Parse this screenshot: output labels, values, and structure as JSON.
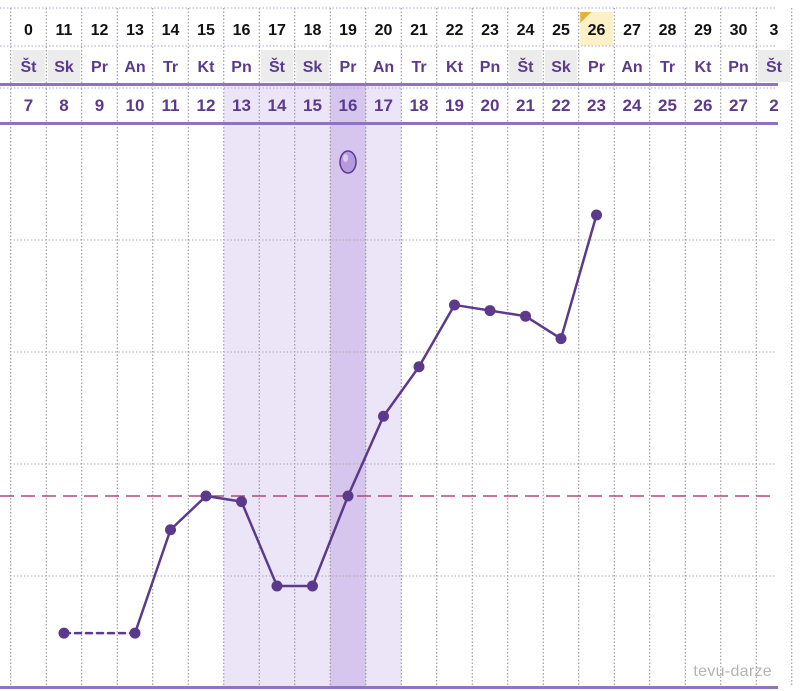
{
  "colors": {
    "line": "#5b3a8c",
    "date_text": "#111111",
    "weekday_text": "#5b3a8c",
    "cycleday_text": "#5b3a8c",
    "fertile_band": "#ece4f7",
    "ovulation_band": "#d6c6ee",
    "coverline": "#b0487a",
    "header_border": "#8f73bf",
    "weekend_cell": "#ececec",
    "today_cell": "#fbf0c6",
    "today_marker": "#e2b23c",
    "egg_fill": "#b59ae0"
  },
  "watermark": "tevu-darze",
  "header": {
    "dates": [
      "0",
      "11",
      "12",
      "13",
      "14",
      "15",
      "16",
      "17",
      "18",
      "19",
      "20",
      "21",
      "22",
      "23",
      "24",
      "25",
      "26",
      "27",
      "28",
      "29",
      "30",
      "3"
    ],
    "weekdays": [
      "Št",
      "Sk",
      "Pr",
      "An",
      "Tr",
      "Kt",
      "Pn",
      "Št",
      "Sk",
      "Pr",
      "An",
      "Tr",
      "Kt",
      "Pn",
      "Št",
      "Sk",
      "Pr",
      "An",
      "Tr",
      "Kt",
      "Pn",
      "Št"
    ],
    "cycle_days": [
      "7",
      "8",
      "9",
      "10",
      "11",
      "12",
      "13",
      "14",
      "15",
      "16",
      "17",
      "18",
      "19",
      "20",
      "21",
      "22",
      "23",
      "24",
      "25",
      "26",
      "27",
      "2"
    ],
    "today_index": 16,
    "weekend_indices": [
      0,
      1,
      7,
      8,
      14,
      15,
      21
    ]
  },
  "chart_data": {
    "type": "line",
    "x": [
      8,
      10,
      11,
      12,
      13,
      14,
      15,
      16,
      17,
      18,
      19,
      20,
      21,
      22,
      23
    ],
    "y": [
      0.35,
      0.35,
      1.27,
      1.57,
      1.52,
      0.77,
      0.77,
      1.57,
      2.28,
      2.72,
      3.27,
      3.22,
      3.17,
      2.97,
      4.07
    ],
    "dashed_segments": [
      [
        8,
        10
      ]
    ],
    "coverline_y": 1.57,
    "fertile_window": [
      13,
      17
    ],
    "ovulation_day": 16,
    "grid": true
  }
}
